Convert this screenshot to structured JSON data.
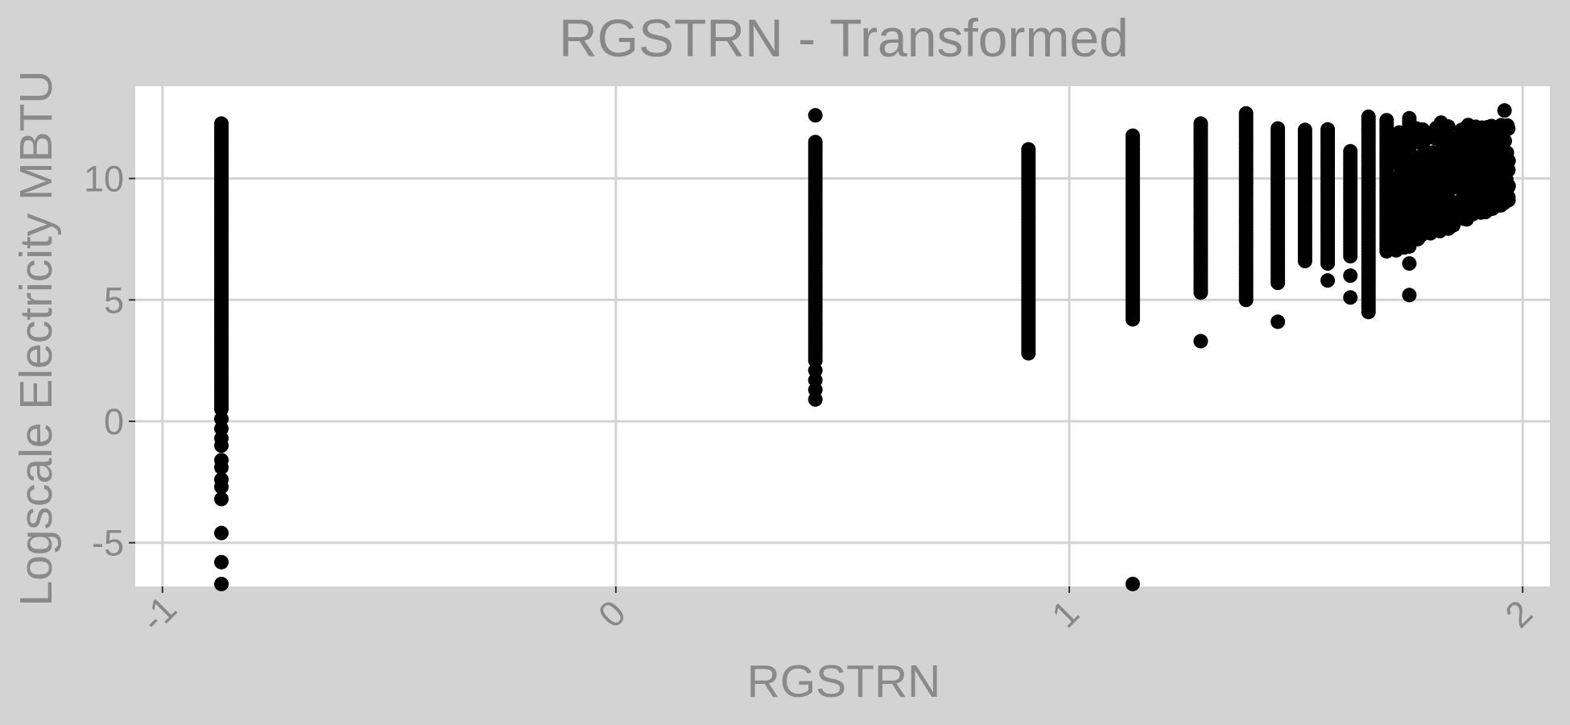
{
  "chart_data": {
    "type": "scatter",
    "title": "RGSTRN - Transformed",
    "xlabel": "RGSTRN",
    "ylabel": "Logscale Electricity MBTU",
    "xlim": [
      -1.06,
      2.06
    ],
    "ylim": [
      -6.8,
      13.8
    ],
    "x_ticks": [
      -1,
      0,
      1,
      2
    ],
    "x_tick_labels": [
      "-1",
      "0",
      "1",
      "2"
    ],
    "y_ticks": [
      -5,
      0,
      5,
      10
    ],
    "y_tick_labels": [
      "-5",
      "0",
      "5",
      "10"
    ],
    "grid": true,
    "point_color": "#000000",
    "panel_color": "#ffffff",
    "background_color": "#d3d3d3",
    "columns": [
      {
        "x": -0.87,
        "ymin": 0.5,
        "ymax": 12.3,
        "outliers": [
          0.1,
          -0.3,
          -0.7,
          -1.0,
          -1.6,
          -1.9,
          -2.4,
          -2.7,
          -3.2,
          -4.6,
          -5.8,
          -6.7
        ]
      },
      {
        "x": 0.44,
        "ymin": 2.5,
        "ymax": 11.6,
        "outliers": [
          12.6,
          2.1,
          1.7,
          1.3,
          0.9
        ]
      },
      {
        "x": 0.91,
        "ymin": 2.8,
        "ymax": 11.2,
        "outliers": []
      },
      {
        "x": 1.14,
        "ymin": 4.2,
        "ymax": 11.8,
        "outliers": [
          -6.7
        ]
      },
      {
        "x": 1.29,
        "ymin": 5.3,
        "ymax": 12.3,
        "outliers": [
          3.3
        ]
      },
      {
        "x": 1.39,
        "ymin": 5.0,
        "ymax": 12.7,
        "outliers": []
      },
      {
        "x": 1.46,
        "ymin": 5.7,
        "ymax": 12.1,
        "outliers": [
          4.1
        ]
      },
      {
        "x": 1.52,
        "ymin": 6.6,
        "ymax": 12.1,
        "outliers": []
      },
      {
        "x": 1.57,
        "ymin": 6.5,
        "ymax": 12.1,
        "outliers": [
          5.8
        ]
      },
      {
        "x": 1.62,
        "ymin": 6.8,
        "ymax": 11.2,
        "outliers": [
          6.0,
          5.1
        ]
      },
      {
        "x": 1.66,
        "ymin": 4.5,
        "ymax": 12.6,
        "outliers": []
      },
      {
        "x": 1.7,
        "ymin": 7.0,
        "ymax": 12.5,
        "outliers": []
      },
      {
        "x": 1.75,
        "ymin": 7.2,
        "ymax": 12.5,
        "outliers": [
          5.2,
          6.5
        ]
      }
    ],
    "cluster": {
      "x_range": [
        1.72,
        1.97
      ],
      "y_min_at_left": 7.0,
      "y_min_at_right": 9.0,
      "y_max": 12.8
    }
  }
}
